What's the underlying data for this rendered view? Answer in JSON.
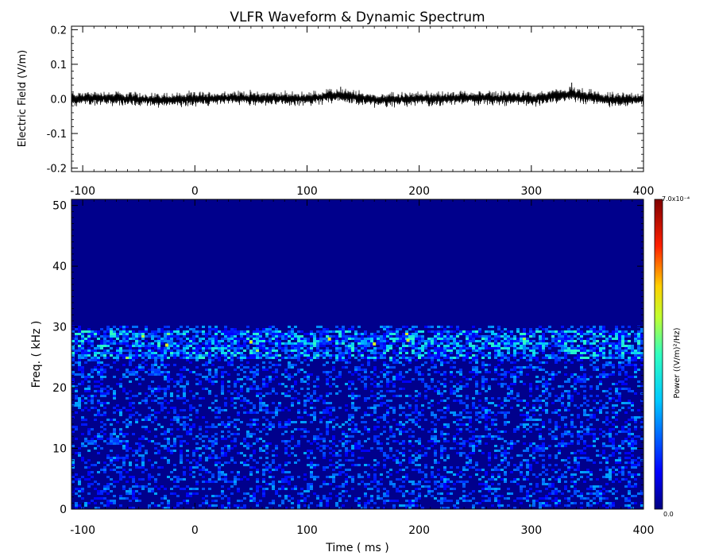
{
  "title": "VLFR Waveform & Dynamic Spectrum",
  "chart_data": [
    {
      "type": "line",
      "panel": "waveform",
      "ylabel": "Electric Field  (V/m)",
      "xlabel": "",
      "xlim": [
        -110,
        400
      ],
      "ylim": [
        -0.21,
        0.21
      ],
      "x_ticks": [
        -100,
        0,
        100,
        200,
        300,
        400
      ],
      "y_ticks": [
        0.2,
        0.1,
        0.0,
        -0.1,
        -0.2
      ],
      "x_tick_labels": [
        "-100",
        "0",
        "100",
        "200",
        "300",
        "400"
      ],
      "y_tick_labels": [
        "0.2",
        "0.1",
        "0.0",
        "-0.1",
        "-0.2"
      ],
      "series": [
        {
          "color": "#000000",
          "x": [
            -110,
            -80,
            -40,
            0,
            40,
            100,
            130,
            160,
            200,
            260,
            300,
            336,
            370,
            400
          ],
          "y": [
            0.0,
            0.01,
            -0.01,
            0.0,
            0.01,
            0.0,
            0.035,
            -0.01,
            0.0,
            0.01,
            0.0,
            0.047,
            -0.01,
            0.0
          ],
          "noise_amplitude": 0.025
        }
      ]
    },
    {
      "type": "heatmap",
      "panel": "spectrum",
      "xlabel": "Time ( ms )",
      "ylabel": "Freq. ( kHz )",
      "xlim": [
        -110,
        400
      ],
      "ylim": [
        0,
        51
      ],
      "x_ticks": [
        -100,
        0,
        100,
        200,
        300,
        400
      ],
      "y_ticks": [
        0,
        10,
        20,
        30,
        40,
        50
      ],
      "x_tick_labels": [
        "-100",
        "0",
        "100",
        "200",
        "300",
        "400"
      ],
      "y_tick_labels": [
        "0",
        "10",
        "20",
        "30",
        "40",
        "50"
      ],
      "frequency_cutoff_khz": 30.5,
      "enhanced_band_khz": [
        25,
        29.5
      ],
      "colorbar": {
        "label": "Power   ((V/m)²/Hz)",
        "min_label": "0.0",
        "max_label": "7.0x10⁻⁴",
        "min": 0.0,
        "max": 0.0007,
        "colormap": "rainbow"
      }
    }
  ]
}
